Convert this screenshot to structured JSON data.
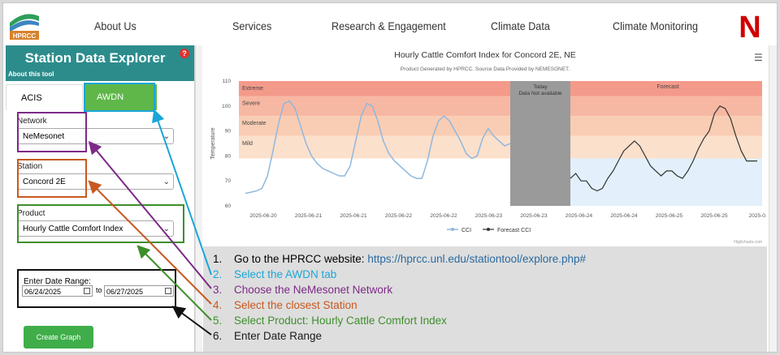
{
  "nav": {
    "logo_text": "HPRCC",
    "items": [
      "About Us",
      "Services",
      "Research & Engagement",
      "Climate Data",
      "Climate Monitoring"
    ],
    "brand_mark": "N"
  },
  "sidebar": {
    "title": "Station Data Explorer",
    "about": "About this tool",
    "help": "?",
    "tabs": [
      "ACIS",
      "AWDN"
    ],
    "network": {
      "label": "Network",
      "value": "NeMesonet"
    },
    "station": {
      "label": "Station",
      "value": "Concord 2E"
    },
    "product": {
      "label": "Product",
      "value": "Hourly Cattle Comfort Index"
    },
    "date_range": {
      "label": "Enter Date Range:",
      "start": "06/24/2025",
      "to": "to",
      "end": "06/27/2025"
    },
    "create_button": "Create Graph"
  },
  "chart": {
    "title": "Hourly Cattle Comfort Index for Concord 2E, NE",
    "subtitle": "Product Generated by HPRCC. Source Data Provided by NEMESONET.",
    "menu_icon": "hamburger-menu-icon",
    "credit": "Highcharts.com"
  },
  "chart_data": {
    "type": "line",
    "ylabel": "Temperature",
    "ylim": [
      60,
      110
    ],
    "yticks": [
      60,
      70,
      80,
      90,
      100,
      110
    ],
    "xtick_labels": [
      "2025-06-20",
      "2025-06-21",
      "2025-06-21",
      "2025-06-22",
      "2025-06-22",
      "2025-06-23",
      "2025-06-23",
      "2025-06-24",
      "2025-06-24",
      "2025-06-25",
      "2025-06-25",
      "2025-0..."
    ],
    "bands": [
      {
        "label": "Extreme",
        "from": 104,
        "to": 110,
        "color": "#f49a8a"
      },
      {
        "label": "Severe",
        "from": 96,
        "to": 104,
        "color": "#f7b8a3"
      },
      {
        "label": "Moderate",
        "from": 88,
        "to": 96,
        "color": "#f9cdb4"
      },
      {
        "label": "Mild",
        "from": 79,
        "to": 88,
        "color": "#fbe0cc"
      }
    ],
    "today_label": [
      "Today",
      "Data Not available"
    ],
    "forecast_label": "Forecast",
    "series": [
      {
        "name": "CCI",
        "color": "#8fb8de",
        "x": [
          0,
          0.5,
          1,
          1.5,
          2,
          2.5,
          3,
          3.5,
          4,
          4.5,
          5,
          5.5,
          6,
          6.5,
          7,
          7.5,
          8,
          8.5,
          9,
          9.5,
          10,
          10.5,
          11,
          11.5,
          12,
          12.5,
          13,
          13.5,
          14,
          14.5,
          15,
          15.5,
          16,
          16.5,
          17,
          17.5,
          18,
          18.5,
          19,
          19.5,
          20,
          20.5,
          21,
          21.5,
          22,
          22.5,
          23,
          23.5,
          24
        ],
        "y": [
          65,
          65.5,
          66,
          67,
          72,
          82,
          93,
          101,
          102,
          99,
          92,
          85,
          80,
          77,
          75,
          74,
          73,
          72,
          72,
          76,
          86,
          96,
          101,
          100,
          94,
          86,
          81,
          78,
          76,
          74,
          72,
          71,
          71,
          78,
          88,
          94,
          96,
          94,
          90,
          86,
          81,
          79,
          80,
          87,
          91,
          88,
          86,
          84,
          85
        ]
      },
      {
        "name": "Forecast CCI",
        "color": "#333333",
        "x": [
          0,
          1,
          2,
          3,
          4,
          5,
          6,
          7,
          8,
          9,
          10,
          11,
          12,
          13,
          14,
          15,
          16,
          17,
          18,
          19,
          20,
          21,
          22,
          23,
          24,
          25,
          26,
          27,
          28,
          29,
          30,
          31,
          32,
          33,
          34,
          35
        ],
        "y": [
          71,
          73,
          70,
          70,
          67,
          66,
          67,
          71,
          74,
          78,
          82,
          84,
          86,
          84,
          80,
          76,
          74,
          72,
          74,
          74,
          72,
          71,
          74,
          78,
          83,
          87,
          90,
          97,
          100,
          99,
          95,
          88,
          82,
          78,
          78,
          78
        ]
      }
    ],
    "legend": "bottom-center"
  },
  "instructions": [
    {
      "num": "1.",
      "text": "Go to the HPRCC website: ",
      "link": "https://hprcc.unl.edu/stationtool/explore.php#",
      "color": "#1a1a1a"
    },
    {
      "num": "2.",
      "text": "Select the AWDN tab",
      "color": "#1aa6d8"
    },
    {
      "num": "3.",
      "text": "Choose the NeMesonet Network",
      "color": "#7d2a86"
    },
    {
      "num": "4.",
      "text": "Select the closest Station",
      "color": "#c8581e"
    },
    {
      "num": "5.",
      "text": "Select Product: Hourly Cattle Comfort Index",
      "color": "#3e8f2c"
    },
    {
      "num": "6.",
      "text": "Enter Date Range",
      "color": "#1a1a1a"
    }
  ],
  "colors": {
    "teal": "#2c8c8c",
    "green": "#5fb74a",
    "purple": "#7d2a86",
    "orange": "#c8581e",
    "cyan": "#1aa6d8",
    "black": "#111111",
    "link": "#2a6aa0"
  }
}
